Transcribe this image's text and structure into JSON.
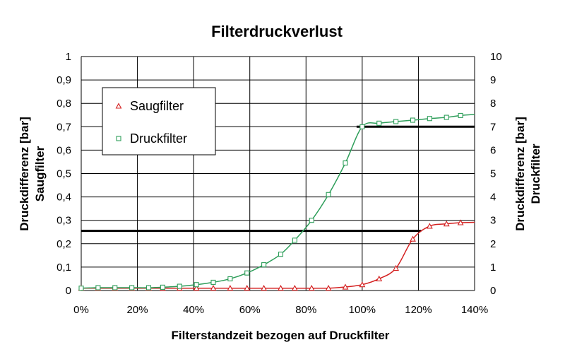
{
  "chart_data": {
    "type": "scatter",
    "title": "Filterdruckverlust",
    "xlabel": "Filterstandzeit bezogen auf Druckfilter",
    "ylabel_left": [
      "Druckdifferenz [bar]",
      "Saugfilter"
    ],
    "ylabel_right": [
      "Druckdifferenz [bar]",
      "Druckfilter"
    ],
    "xlim": [
      0,
      140
    ],
    "ylim_left": [
      0,
      1
    ],
    "ylim_right": [
      0,
      10
    ],
    "x_ticks": [
      "0%",
      "20%",
      "40%",
      "60%",
      "80%",
      "100%",
      "120%",
      "140%"
    ],
    "y_ticks_left": [
      "0",
      "0,1",
      "0,2",
      "0,3",
      "0,4",
      "0,5",
      "0,6",
      "0,7",
      "0,8",
      "0,9",
      "1"
    ],
    "y_ticks_right": [
      "0",
      "1",
      "2",
      "3",
      "4",
      "5",
      "6",
      "7",
      "8",
      "9",
      "10"
    ],
    "grid": true,
    "legend_position": "top-left",
    "series": [
      {
        "name": "Saugfilter",
        "axis": "left",
        "color": "#d42020",
        "marker": "triangle",
        "x": [
          0,
          6,
          12,
          18,
          24,
          29,
          35,
          41,
          47,
          53,
          59,
          65,
          71,
          76,
          82,
          88,
          94,
          100,
          106,
          112,
          118,
          124,
          130,
          135
        ],
        "y": [
          0.01,
          0.01,
          0.01,
          0.01,
          0.01,
          0.01,
          0.01,
          0.01,
          0.01,
          0.01,
          0.01,
          0.01,
          0.01,
          0.01,
          0.01,
          0.01,
          0.015,
          0.025,
          0.05,
          0.095,
          0.22,
          0.275,
          0.285,
          0.29
        ]
      },
      {
        "name": "Druckfilter",
        "axis": "right",
        "color": "#2e9e5a",
        "marker": "square",
        "x": [
          0,
          6,
          12,
          18,
          24,
          29,
          35,
          41,
          47,
          53,
          59,
          65,
          71,
          76,
          82,
          88,
          94,
          100,
          106,
          112,
          118,
          124,
          130,
          135
        ],
        "y": [
          0.1,
          0.12,
          0.12,
          0.12,
          0.12,
          0.14,
          0.18,
          0.25,
          0.35,
          0.5,
          0.75,
          1.1,
          1.55,
          2.15,
          3.0,
          4.1,
          5.45,
          7.0,
          7.15,
          7.22,
          7.28,
          7.35,
          7.4,
          7.48
        ]
      }
    ],
    "reference_lines": [
      {
        "axis": "left",
        "y": 0.255,
        "x_start": 0,
        "x_end": 121
      },
      {
        "axis": "right",
        "y": 7.0,
        "x_start": 98,
        "x_end": 140
      }
    ]
  }
}
